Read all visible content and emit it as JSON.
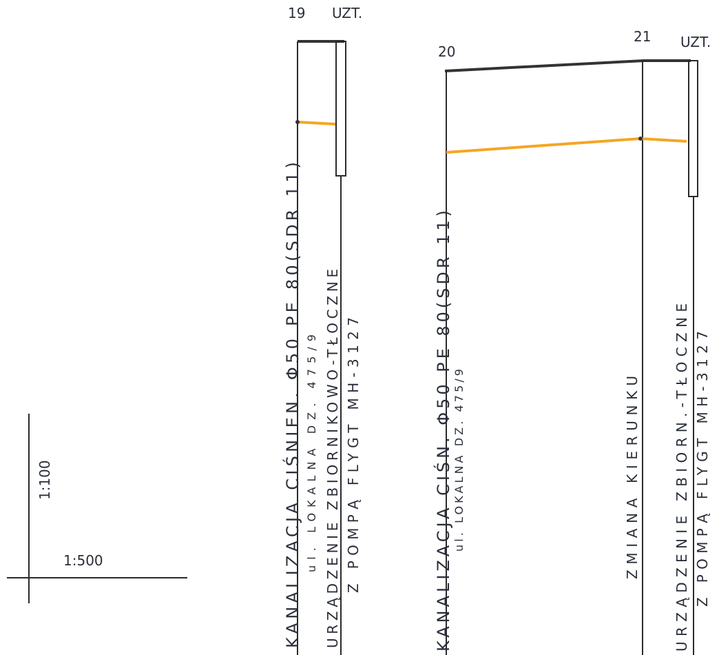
{
  "left_profile": {
    "start_node": "19",
    "end_node": "UZT.",
    "pipe": "KANALIZACJA CIŚNIEN. Φ50 PE 80(SDR 11)",
    "street": "ul. LOKALNA DZ. 475/9",
    "device": "URZĄDZENIE ZBIORNIKOWO-TŁOCZNE",
    "pump": "Z POMPĄ FLYGT MH-3127"
  },
  "right_profile": {
    "start_node": "20",
    "middle_node": "21",
    "end_node": "UZT.",
    "pipe": "KANALIZACJA CIŚN. Φ50 PE 80(SDR 11)",
    "street": "ul. LOKALNA DZ. 475/9",
    "direction_change": "ZMIANA KIERUNKU",
    "device": "URZĄDZENIE ZBIORN.-TŁOCZNE",
    "pump": "Z POMPĄ FLYGT MH-3127"
  },
  "scale": {
    "vertical": "1:100",
    "horizontal": "1:500"
  }
}
